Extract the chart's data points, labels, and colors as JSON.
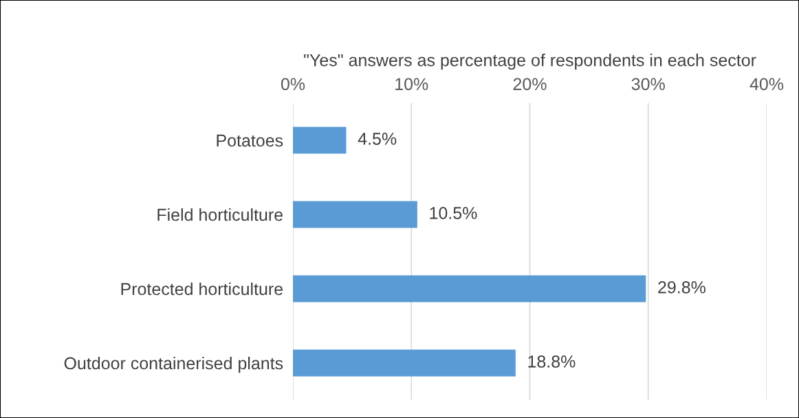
{
  "chart_data": {
    "type": "bar",
    "orientation": "horizontal",
    "xlabel": "\"Yes\" answers as percentage of respondents in each sector",
    "categories": [
      "Potatoes",
      "Field horticulture",
      "Protected horticulture",
      "Outdoor containerised plants"
    ],
    "values": [
      4.5,
      10.5,
      29.8,
      18.8
    ],
    "color": "#5b9bd5",
    "value_labels": [
      "4.5%",
      "10.5%",
      "29.8%",
      "18.8%"
    ],
    "xlim": [
      0,
      40
    ],
    "xticks": [
      {
        "value": 0,
        "label": "0%"
      },
      {
        "value": 10,
        "label": "10%"
      },
      {
        "value": 20,
        "label": "20%"
      },
      {
        "value": 30,
        "label": "30%"
      },
      {
        "value": 40,
        "label": "40%"
      }
    ],
    "grid": "x"
  }
}
